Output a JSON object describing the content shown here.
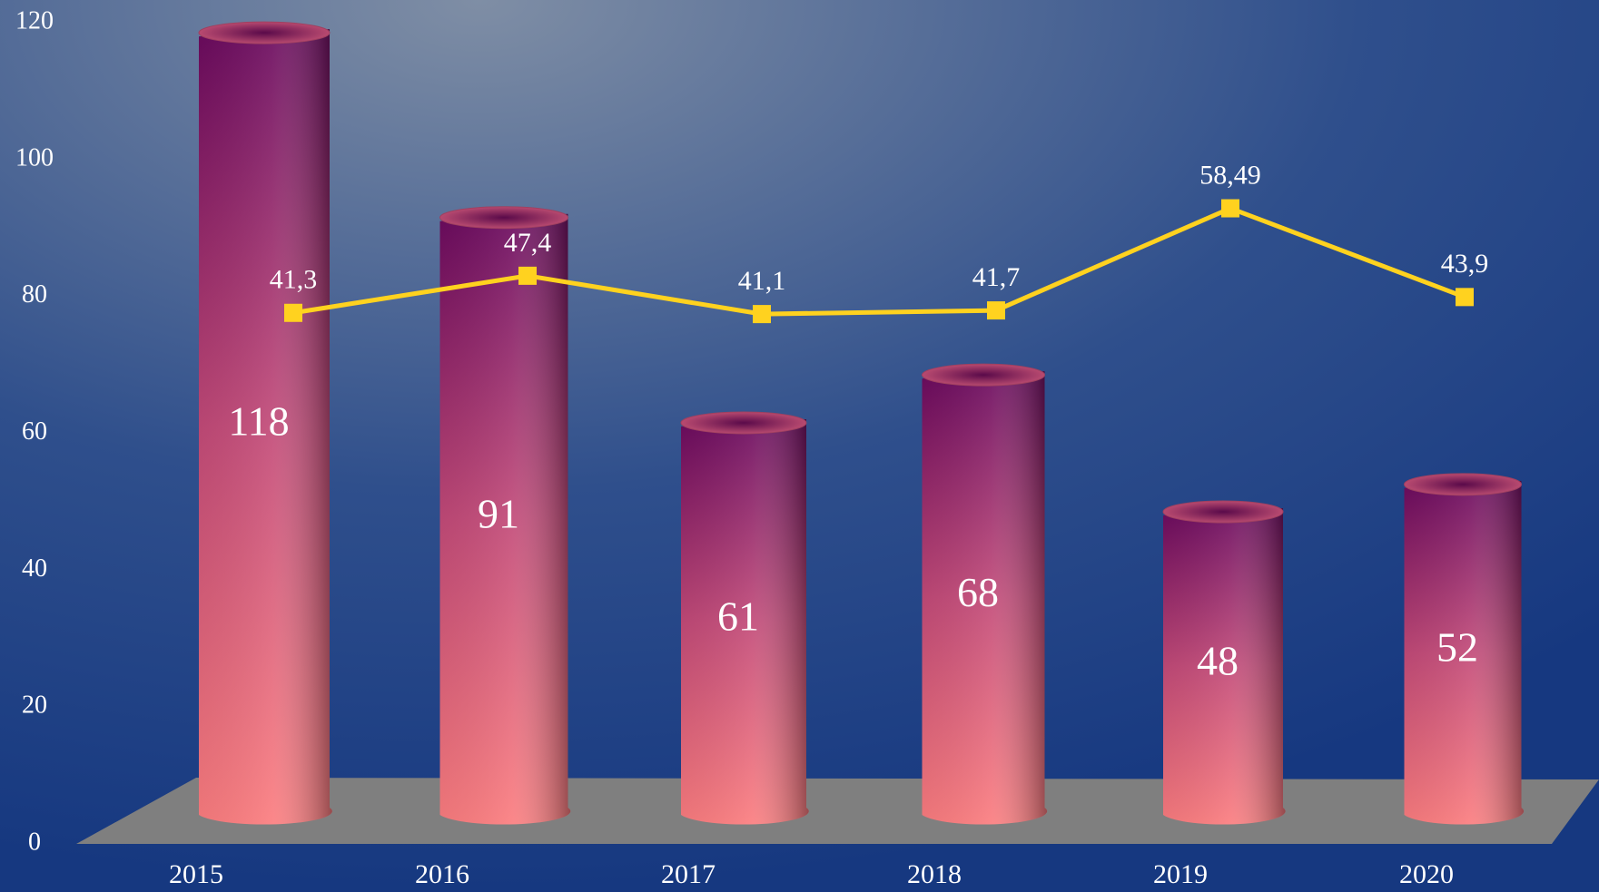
{
  "chart_data": {
    "type": "bar",
    "categories": [
      "2015",
      "2016",
      "2017",
      "2018",
      "2019",
      "2020"
    ],
    "series": [
      {
        "name": "bars",
        "type": "bar",
        "color": "#f77a7e",
        "values": [
          118,
          91,
          61,
          68,
          48,
          52
        ]
      },
      {
        "name": "line",
        "type": "line",
        "axis": "y2",
        "color": "#ffd21f",
        "values": [
          41.3,
          47.4,
          41.1,
          41.7,
          58.49,
          43.9
        ],
        "value_labels": [
          "41,3",
          "47,4",
          "41,1",
          "41,7",
          "58,49",
          "43,9"
        ]
      }
    ],
    "ylim": [
      0,
      120
    ],
    "yticks": [
      0,
      20,
      40,
      60,
      80,
      100,
      120
    ],
    "y2lim": [
      -46,
      89
    ]
  }
}
